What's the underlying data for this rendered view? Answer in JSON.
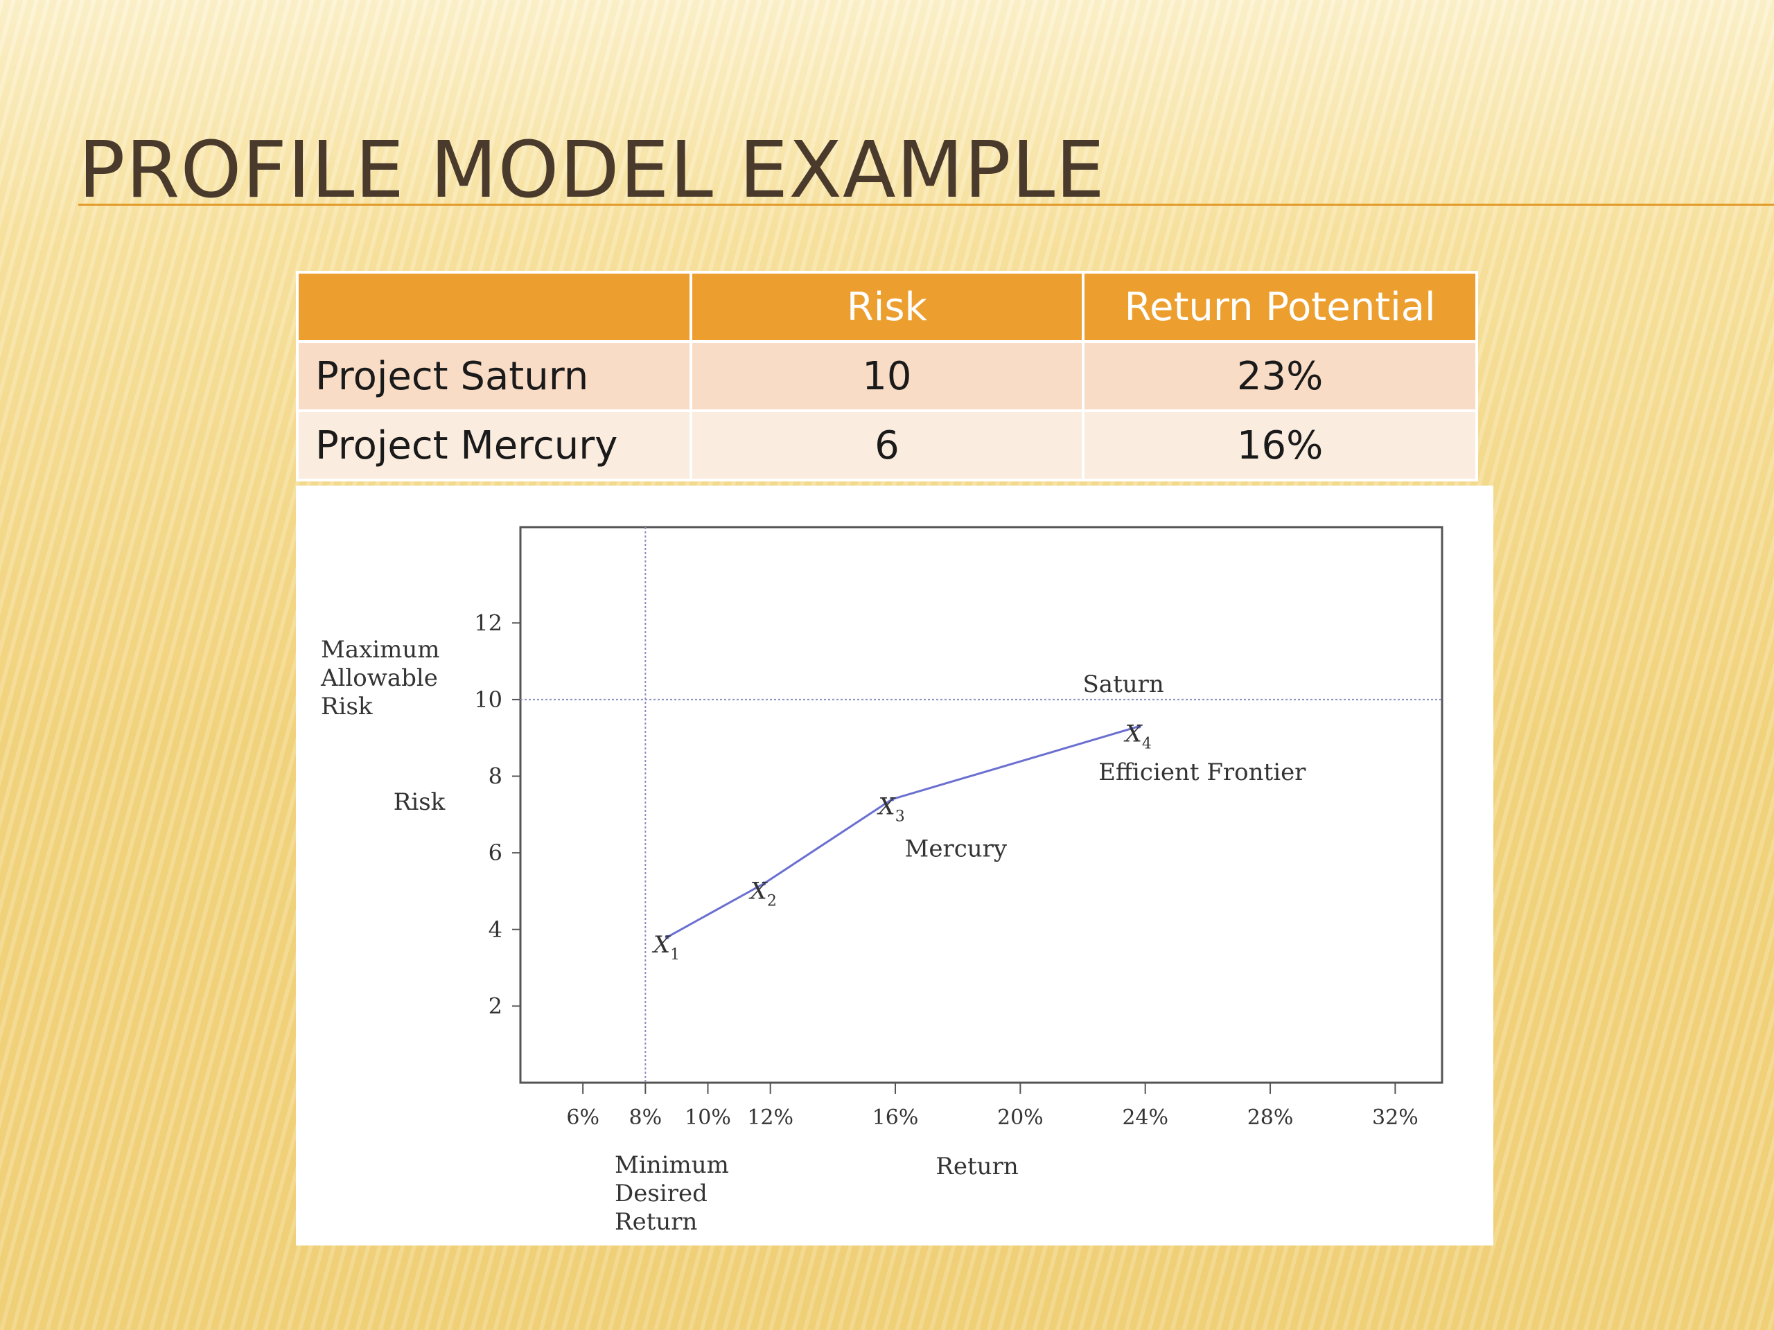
{
  "slide": {
    "title": "PROFILE MODEL EXAMPLE"
  },
  "table": {
    "headers": [
      "",
      "Risk",
      "Return Potential"
    ],
    "rows": [
      {
        "label": "Project Saturn",
        "risk": "10",
        "return": "23%"
      },
      {
        "label": "Project Mercury",
        "risk": "6",
        "return": "16%"
      }
    ]
  },
  "chart_data": {
    "type": "line",
    "xlabel": "Return",
    "ylabel": "Risk",
    "xlim": [
      4,
      33.5
    ],
    "ylim": [
      0,
      14.5
    ],
    "x_ticks": [
      6,
      8,
      10,
      12,
      16,
      20,
      24,
      28,
      32
    ],
    "x_tick_labels": [
      "6%",
      "8%",
      "10%",
      "12%",
      "16%",
      "20%",
      "24%",
      "28%",
      "32%"
    ],
    "y_ticks": [
      2,
      4,
      6,
      8,
      10,
      12
    ],
    "y_tick_labels": [
      "2",
      "4",
      "6",
      "8",
      "10",
      "12"
    ],
    "series": [
      {
        "name": "Efficient Frontier",
        "x": [
          8.7,
          11.8,
          15.9,
          23.8
        ],
        "y": [
          3.8,
          5.2,
          7.4,
          9.3
        ],
        "point_labels": [
          "X1",
          "X2",
          "X3",
          "X4"
        ]
      }
    ],
    "reference_lines": {
      "max_risk": {
        "y": 10,
        "label_lines": [
          "Maximum",
          "Allowable",
          "Risk"
        ]
      },
      "min_return": {
        "x": 8,
        "label_lines": [
          "Minimum",
          "Desired",
          "Return"
        ]
      }
    },
    "annotations": [
      {
        "text": "Saturn",
        "x": 22,
        "y": 10.2
      },
      {
        "text": "Mercury",
        "x": 16.3,
        "y": 5.9
      },
      {
        "text": "Efficient Frontier",
        "x": 22.5,
        "y": 7.9
      }
    ],
    "grid": false,
    "colors": {
      "line": "#6a6fd0",
      "axes": "#555555",
      "reference": "#8a8fbf"
    }
  }
}
